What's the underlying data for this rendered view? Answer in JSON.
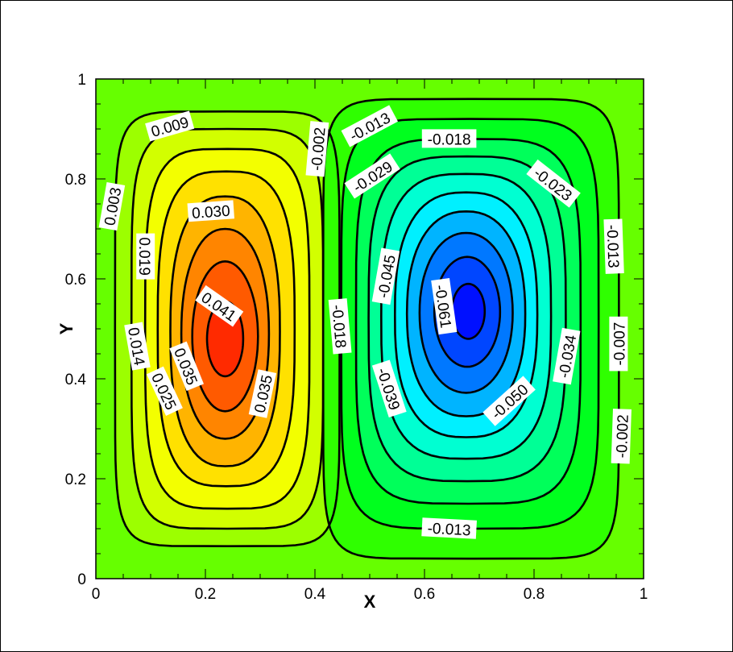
{
  "chart_data": {
    "type": "contour",
    "xlabel": "X",
    "ylabel": "Y",
    "xlim": [
      0,
      1
    ],
    "ylim": [
      0,
      1
    ],
    "x_ticks": [
      "0",
      "0.2",
      "0.4",
      "0.6",
      "0.8",
      "1"
    ],
    "y_ticks": [
      "0",
      "0.2",
      "0.4",
      "0.6",
      "0.8",
      "1"
    ],
    "colormap": [
      "#0000ff",
      "#00ffff",
      "#00ff00",
      "#ffff00",
      "#ff0000"
    ],
    "background_color": "#66ff00",
    "vortices": [
      {
        "sign": "positive",
        "center": [
          0.235,
          0.48
        ],
        "peak_label": "0.041"
      },
      {
        "sign": "negative",
        "center": [
          0.675,
          0.535
        ],
        "peak_label": "-0.061"
      }
    ],
    "contour_labels": [
      {
        "text": "0.009",
        "x": 0.135,
        "y": 0.905,
        "angle": -16
      },
      {
        "text": "0.003",
        "x": 0.03,
        "y": 0.745,
        "angle": -80
      },
      {
        "text": "0.030",
        "x": 0.21,
        "y": 0.735,
        "angle": -4
      },
      {
        "text": "0.019",
        "x": 0.09,
        "y": 0.645,
        "angle": 90
      },
      {
        "text": "0.041",
        "x": 0.225,
        "y": 0.545,
        "angle": 35
      },
      {
        "text": "0.014",
        "x": 0.075,
        "y": 0.465,
        "angle": 80
      },
      {
        "text": "0.035",
        "x": 0.165,
        "y": 0.425,
        "angle": 68
      },
      {
        "text": "0.025",
        "x": 0.125,
        "y": 0.375,
        "angle": 65
      },
      {
        "text": "0.035",
        "x": 0.305,
        "y": 0.37,
        "angle": -78
      },
      {
        "text": "-0.002",
        "x": 0.405,
        "y": 0.86,
        "angle": -85
      },
      {
        "text": "-0.013",
        "x": 0.5,
        "y": 0.905,
        "angle": -28
      },
      {
        "text": "-0.018",
        "x": 0.645,
        "y": 0.88,
        "angle": 0
      },
      {
        "text": "-0.029",
        "x": 0.505,
        "y": 0.805,
        "angle": -33
      },
      {
        "text": "-0.023",
        "x": 0.835,
        "y": 0.79,
        "angle": 38
      },
      {
        "text": "-0.013",
        "x": 0.945,
        "y": 0.665,
        "angle": 88
      },
      {
        "text": "-0.045",
        "x": 0.53,
        "y": 0.605,
        "angle": -80
      },
      {
        "text": "-0.061",
        "x": 0.635,
        "y": 0.545,
        "angle": 82
      },
      {
        "text": "-0.018",
        "x": 0.445,
        "y": 0.505,
        "angle": 85
      },
      {
        "text": "-0.007",
        "x": 0.955,
        "y": 0.47,
        "angle": -90
      },
      {
        "text": "-0.034",
        "x": 0.86,
        "y": 0.445,
        "angle": -80
      },
      {
        "text": "-0.039",
        "x": 0.535,
        "y": 0.38,
        "angle": 72
      },
      {
        "text": "-0.050",
        "x": 0.755,
        "y": 0.355,
        "angle": -42
      },
      {
        "text": "-0.002",
        "x": 0.96,
        "y": 0.285,
        "angle": -88
      },
      {
        "text": "-0.013",
        "x": 0.645,
        "y": 0.1,
        "angle": 3
      }
    ]
  }
}
